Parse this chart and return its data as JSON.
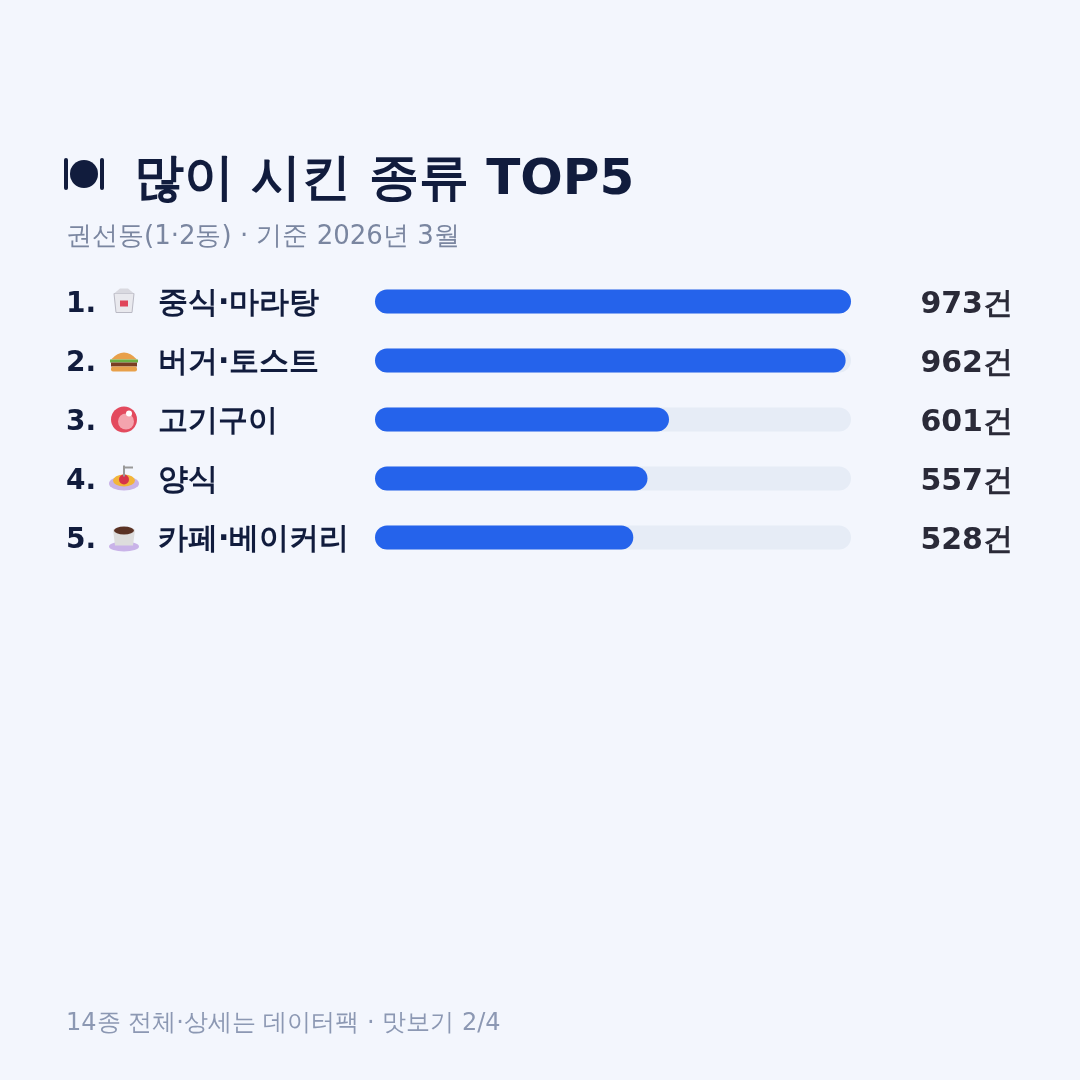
{
  "chart_data": {
    "type": "bar",
    "orientation": "horizontal",
    "title": "많이 시킨 종류 TOP5",
    "subtitle": "권선동(1·2동) · 기준 2026년 3월",
    "categories": [
      "1. 중식·마라탕",
      "2. 버거·토스트",
      "3. 고기구이",
      "4. 양식",
      "5. 카페·베이커리"
    ],
    "values": [
      973,
      962,
      601,
      557,
      528
    ],
    "value_labels": [
      "973건",
      "962건",
      "601건",
      "557건",
      "528건"
    ],
    "color": "#2563eb",
    "xlim": [
      0,
      973
    ],
    "annotations": [
      "14종 전체·상세는 데이터팩 · 맛보기 2/4"
    ]
  }
}
